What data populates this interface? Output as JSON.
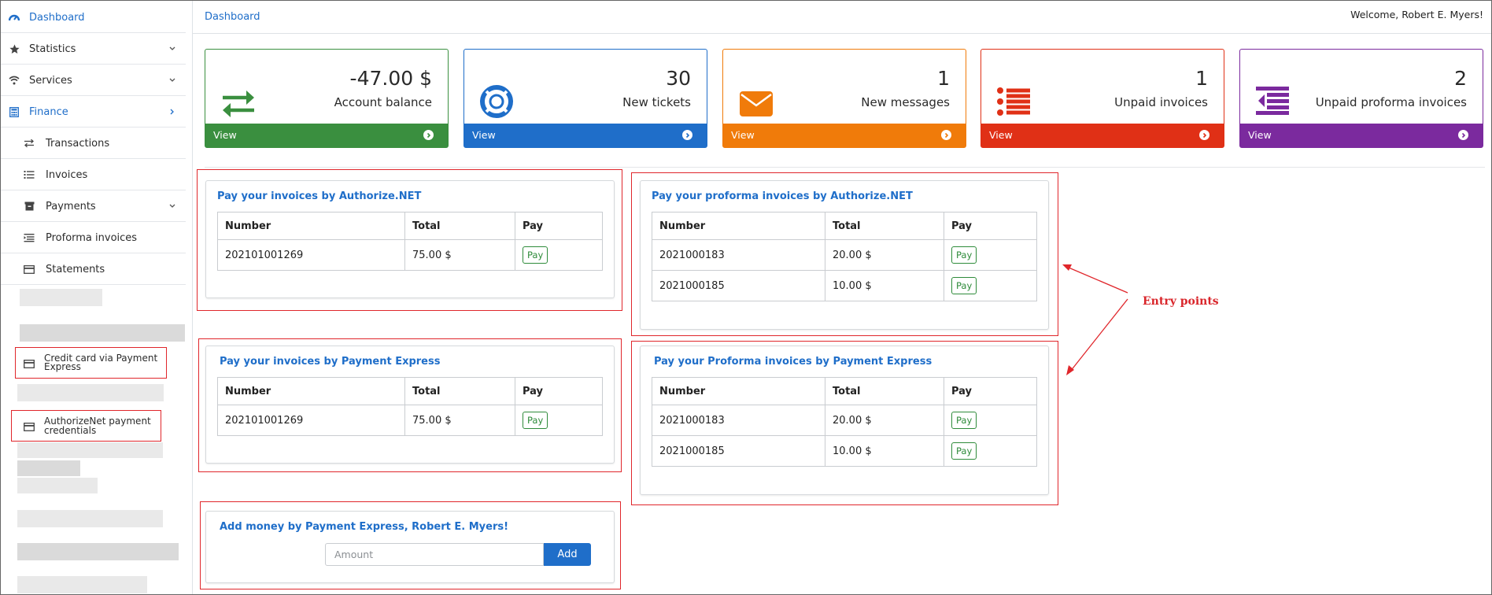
{
  "sidebar": {
    "items": [
      {
        "label": "Dashboard",
        "icon": "gauge-icon"
      },
      {
        "label": "Statistics",
        "icon": "star-icon"
      },
      {
        "label": "Services",
        "icon": "wifi-icon"
      },
      {
        "label": "Finance",
        "icon": "calculator-icon"
      },
      {
        "label": "Transactions",
        "icon": "exchange-icon"
      },
      {
        "label": "Invoices",
        "icon": "list-icon"
      },
      {
        "label": "Payments",
        "icon": "archive-icon"
      },
      {
        "label": "Proforma invoices",
        "icon": "indent-list-icon"
      },
      {
        "label": "Statements",
        "icon": "card-icon"
      },
      {
        "label": "Credit card via Payment Express",
        "icon": "credit-card-icon"
      },
      {
        "label": "AuthorizeNet payment credentials",
        "icon": "credit-card-icon"
      }
    ]
  },
  "header": {
    "breadcrumb": "Dashboard",
    "welcome": "Welcome, Robert E. Myers!"
  },
  "cards": [
    {
      "value": "-47.00 $",
      "caption": "Account balance",
      "link": "View",
      "color": "#3a8f3f",
      "icon": "arrows-exchange-icon"
    },
    {
      "value": "30",
      "caption": "New tickets",
      "link": "View",
      "color": "#1f6ec9",
      "icon": "lifebuoy-icon"
    },
    {
      "value": "1",
      "caption": "New messages",
      "link": "View",
      "color": "#f07b0a",
      "icon": "envelope-icon"
    },
    {
      "value": "1",
      "caption": "Unpaid invoices",
      "link": "View",
      "color": "#e03016",
      "icon": "list-icon"
    },
    {
      "value": "2",
      "caption": "Unpaid proforma invoices",
      "link": "View",
      "color": "#7b2a9e",
      "icon": "indent-list-icon"
    }
  ],
  "table_headers": {
    "number": "Number",
    "total": "Total",
    "pay": "Pay"
  },
  "pay_label": "Pay",
  "panels": {
    "auth_invoices": {
      "title": "Pay your invoices by Authorize.NET",
      "rows": [
        {
          "number": "202101001269",
          "total": "75.00 $"
        }
      ]
    },
    "auth_proforma": {
      "title": "Pay your proforma invoices by Authorize.NET",
      "rows": [
        {
          "number": "2021000183",
          "total": "20.00 $"
        },
        {
          "number": "2021000185",
          "total": "10.00 $"
        }
      ]
    },
    "pe_invoices": {
      "title": "Pay your invoices by Payment Express",
      "rows": [
        {
          "number": "202101001269",
          "total": "75.00 $"
        }
      ]
    },
    "pe_proforma": {
      "title": "Pay your Proforma invoices by Payment Express",
      "rows": [
        {
          "number": "2021000183",
          "total": "20.00 $"
        },
        {
          "number": "2021000185",
          "total": "10.00 $"
        }
      ]
    },
    "add_money": {
      "title": "Add money by Payment Express, Robert E. Myers!",
      "placeholder": "Amount",
      "button": "Add"
    }
  },
  "annotation": {
    "text": "Entry points",
    "color": "#d9262b"
  }
}
